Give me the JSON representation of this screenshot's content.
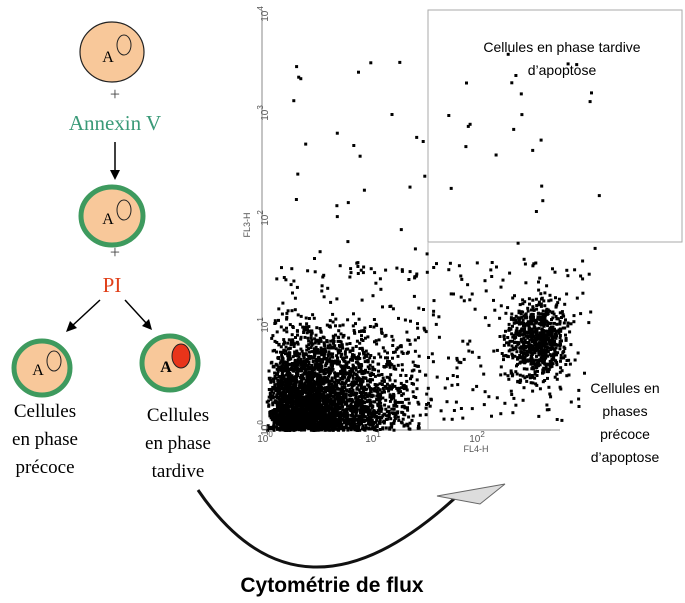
{
  "left_panel": {
    "cell_letter": "A",
    "plus": "+",
    "annexin": "Annexin V",
    "pi": "PI",
    "early_label": [
      "Cellules",
      "en phase",
      "précoce"
    ],
    "late_label": [
      "Cellules",
      "en phase",
      "tardive"
    ]
  },
  "plot": {
    "x_axis_label": "FL4-H",
    "y_axis_label": "FL3-H",
    "x_ticks": [
      {
        "base": "10",
        "exp": "0"
      },
      {
        "base": "10",
        "exp": "1"
      },
      {
        "base": "10",
        "exp": "2"
      }
    ],
    "y_ticks": [
      {
        "base": "10",
        "exp": "0"
      },
      {
        "base": "10",
        "exp": "1"
      },
      {
        "base": "10",
        "exp": "2"
      },
      {
        "base": "10",
        "exp": "3"
      },
      {
        "base": "10",
        "exp": "4"
      }
    ],
    "late_quadrant_label": [
      "Cellules en phase tardive",
      "d’apoptose"
    ],
    "early_quadrant_label": [
      "Cellules en",
      "phases",
      "précoce",
      "d’apoptose"
    ]
  },
  "caption": "Cytométrie de flux"
}
